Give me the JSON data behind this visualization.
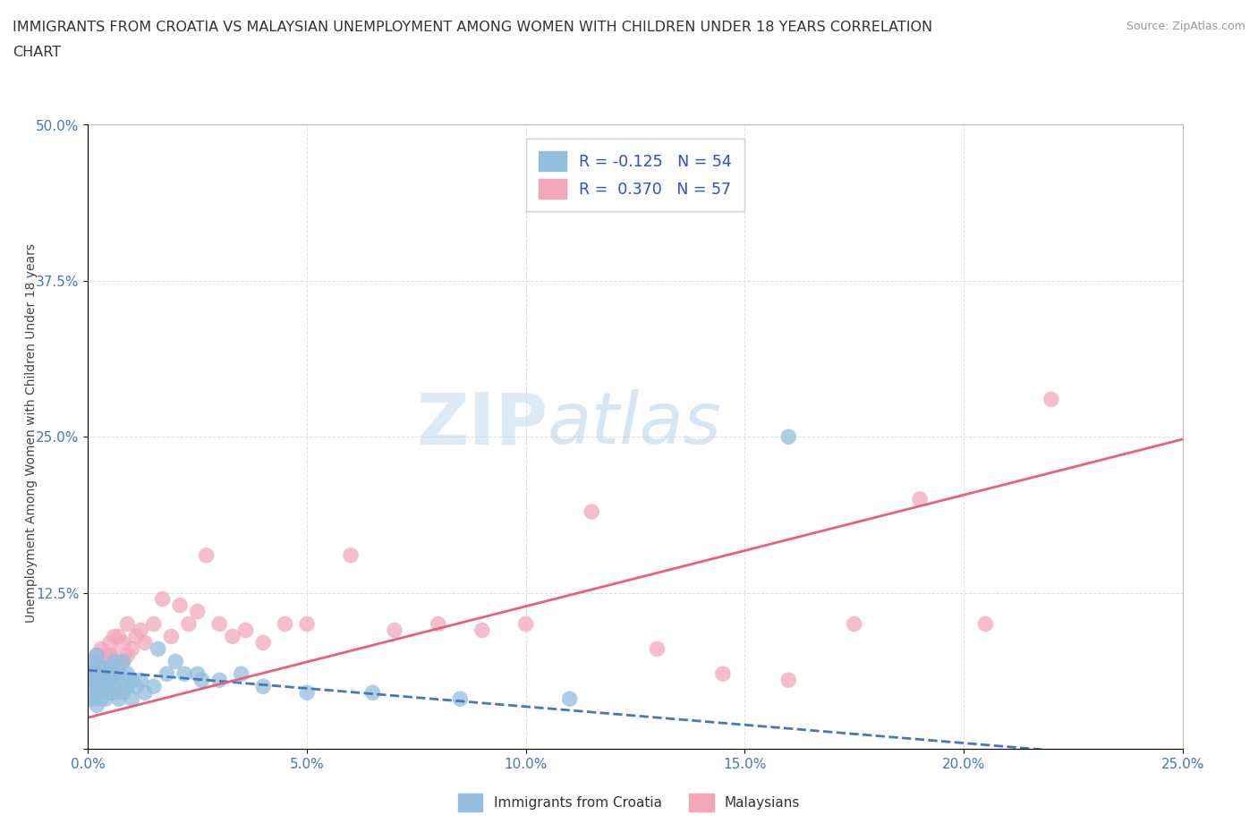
{
  "title_line1": "IMMIGRANTS FROM CROATIA VS MALAYSIAN UNEMPLOYMENT AMONG WOMEN WITH CHILDREN UNDER 18 YEARS CORRELATION",
  "title_line2": "CHART",
  "source_text": "Source: ZipAtlas.com",
  "ylabel": "Unemployment Among Women with Children Under 18 years",
  "xlim": [
    0.0,
    0.25
  ],
  "ylim": [
    0.0,
    0.5
  ],
  "xticks": [
    0.0,
    0.05,
    0.1,
    0.15,
    0.2,
    0.25
  ],
  "yticks": [
    0.0,
    0.125,
    0.25,
    0.375,
    0.5
  ],
  "xticklabels": [
    "0.0%",
    "5.0%",
    "10.0%",
    "15.0%",
    "20.0%",
    "25.0%"
  ],
  "yticklabels_right": [
    "",
    "12.5%",
    "25.0%",
    "37.5%",
    "50.0%"
  ],
  "background_color": "#ffffff",
  "grid_color": "#e0e0e0",
  "watermark_zip": "ZIP",
  "watermark_atlas": "atlas",
  "legend_r1": "R = -0.125",
  "legend_n1": "N = 54",
  "legend_r2": "R =  0.370",
  "legend_n2": "N = 57",
  "blue_color": "#93bedd",
  "pink_color": "#f2a8bb",
  "blue_line_color": "#4477bb",
  "pink_line_color": "#e8607a",
  "blue_trend_x0": 0.0,
  "blue_trend_y0": 0.063,
  "blue_trend_x1": 0.25,
  "blue_trend_y1": -0.01,
  "pink_trend_x0": 0.0,
  "pink_trend_y0": 0.025,
  "pink_trend_x1": 0.25,
  "pink_trend_y1": 0.248,
  "blue_scatter_x": [
    0.001,
    0.001,
    0.001,
    0.001,
    0.002,
    0.002,
    0.002,
    0.002,
    0.002,
    0.002,
    0.002,
    0.003,
    0.003,
    0.003,
    0.003,
    0.003,
    0.004,
    0.004,
    0.004,
    0.004,
    0.005,
    0.005,
    0.005,
    0.005,
    0.006,
    0.006,
    0.006,
    0.007,
    0.007,
    0.008,
    0.008,
    0.008,
    0.009,
    0.009,
    0.01,
    0.01,
    0.011,
    0.012,
    0.013,
    0.015,
    0.016,
    0.018,
    0.02,
    0.022,
    0.025,
    0.026,
    0.03,
    0.035,
    0.04,
    0.05,
    0.065,
    0.085,
    0.11,
    0.16
  ],
  "blue_scatter_y": [
    0.04,
    0.05,
    0.055,
    0.07,
    0.035,
    0.045,
    0.05,
    0.06,
    0.065,
    0.07,
    0.075,
    0.04,
    0.05,
    0.055,
    0.06,
    0.065,
    0.04,
    0.05,
    0.055,
    0.06,
    0.045,
    0.055,
    0.06,
    0.065,
    0.045,
    0.05,
    0.07,
    0.04,
    0.06,
    0.045,
    0.055,
    0.07,
    0.05,
    0.06,
    0.04,
    0.055,
    0.05,
    0.055,
    0.045,
    0.05,
    0.08,
    0.06,
    0.07,
    0.06,
    0.06,
    0.055,
    0.055,
    0.06,
    0.05,
    0.045,
    0.045,
    0.04,
    0.04,
    0.25
  ],
  "pink_scatter_x": [
    0.001,
    0.001,
    0.001,
    0.002,
    0.002,
    0.002,
    0.002,
    0.003,
    0.003,
    0.003,
    0.003,
    0.004,
    0.004,
    0.004,
    0.005,
    0.005,
    0.005,
    0.005,
    0.006,
    0.006,
    0.006,
    0.007,
    0.007,
    0.008,
    0.008,
    0.009,
    0.009,
    0.01,
    0.011,
    0.012,
    0.013,
    0.015,
    0.017,
    0.019,
    0.021,
    0.023,
    0.025,
    0.027,
    0.03,
    0.033,
    0.036,
    0.04,
    0.045,
    0.05,
    0.06,
    0.07,
    0.08,
    0.09,
    0.1,
    0.115,
    0.13,
    0.145,
    0.16,
    0.175,
    0.19,
    0.205,
    0.22
  ],
  "pink_scatter_y": [
    0.04,
    0.055,
    0.065,
    0.05,
    0.06,
    0.065,
    0.075,
    0.045,
    0.06,
    0.07,
    0.08,
    0.05,
    0.06,
    0.075,
    0.055,
    0.065,
    0.075,
    0.085,
    0.06,
    0.075,
    0.09,
    0.065,
    0.09,
    0.07,
    0.085,
    0.075,
    0.1,
    0.08,
    0.09,
    0.095,
    0.085,
    0.1,
    0.12,
    0.09,
    0.115,
    0.1,
    0.11,
    0.155,
    0.1,
    0.09,
    0.095,
    0.085,
    0.1,
    0.1,
    0.155,
    0.095,
    0.1,
    0.095,
    0.1,
    0.19,
    0.08,
    0.06,
    0.055,
    0.1,
    0.2,
    0.1,
    0.28
  ]
}
